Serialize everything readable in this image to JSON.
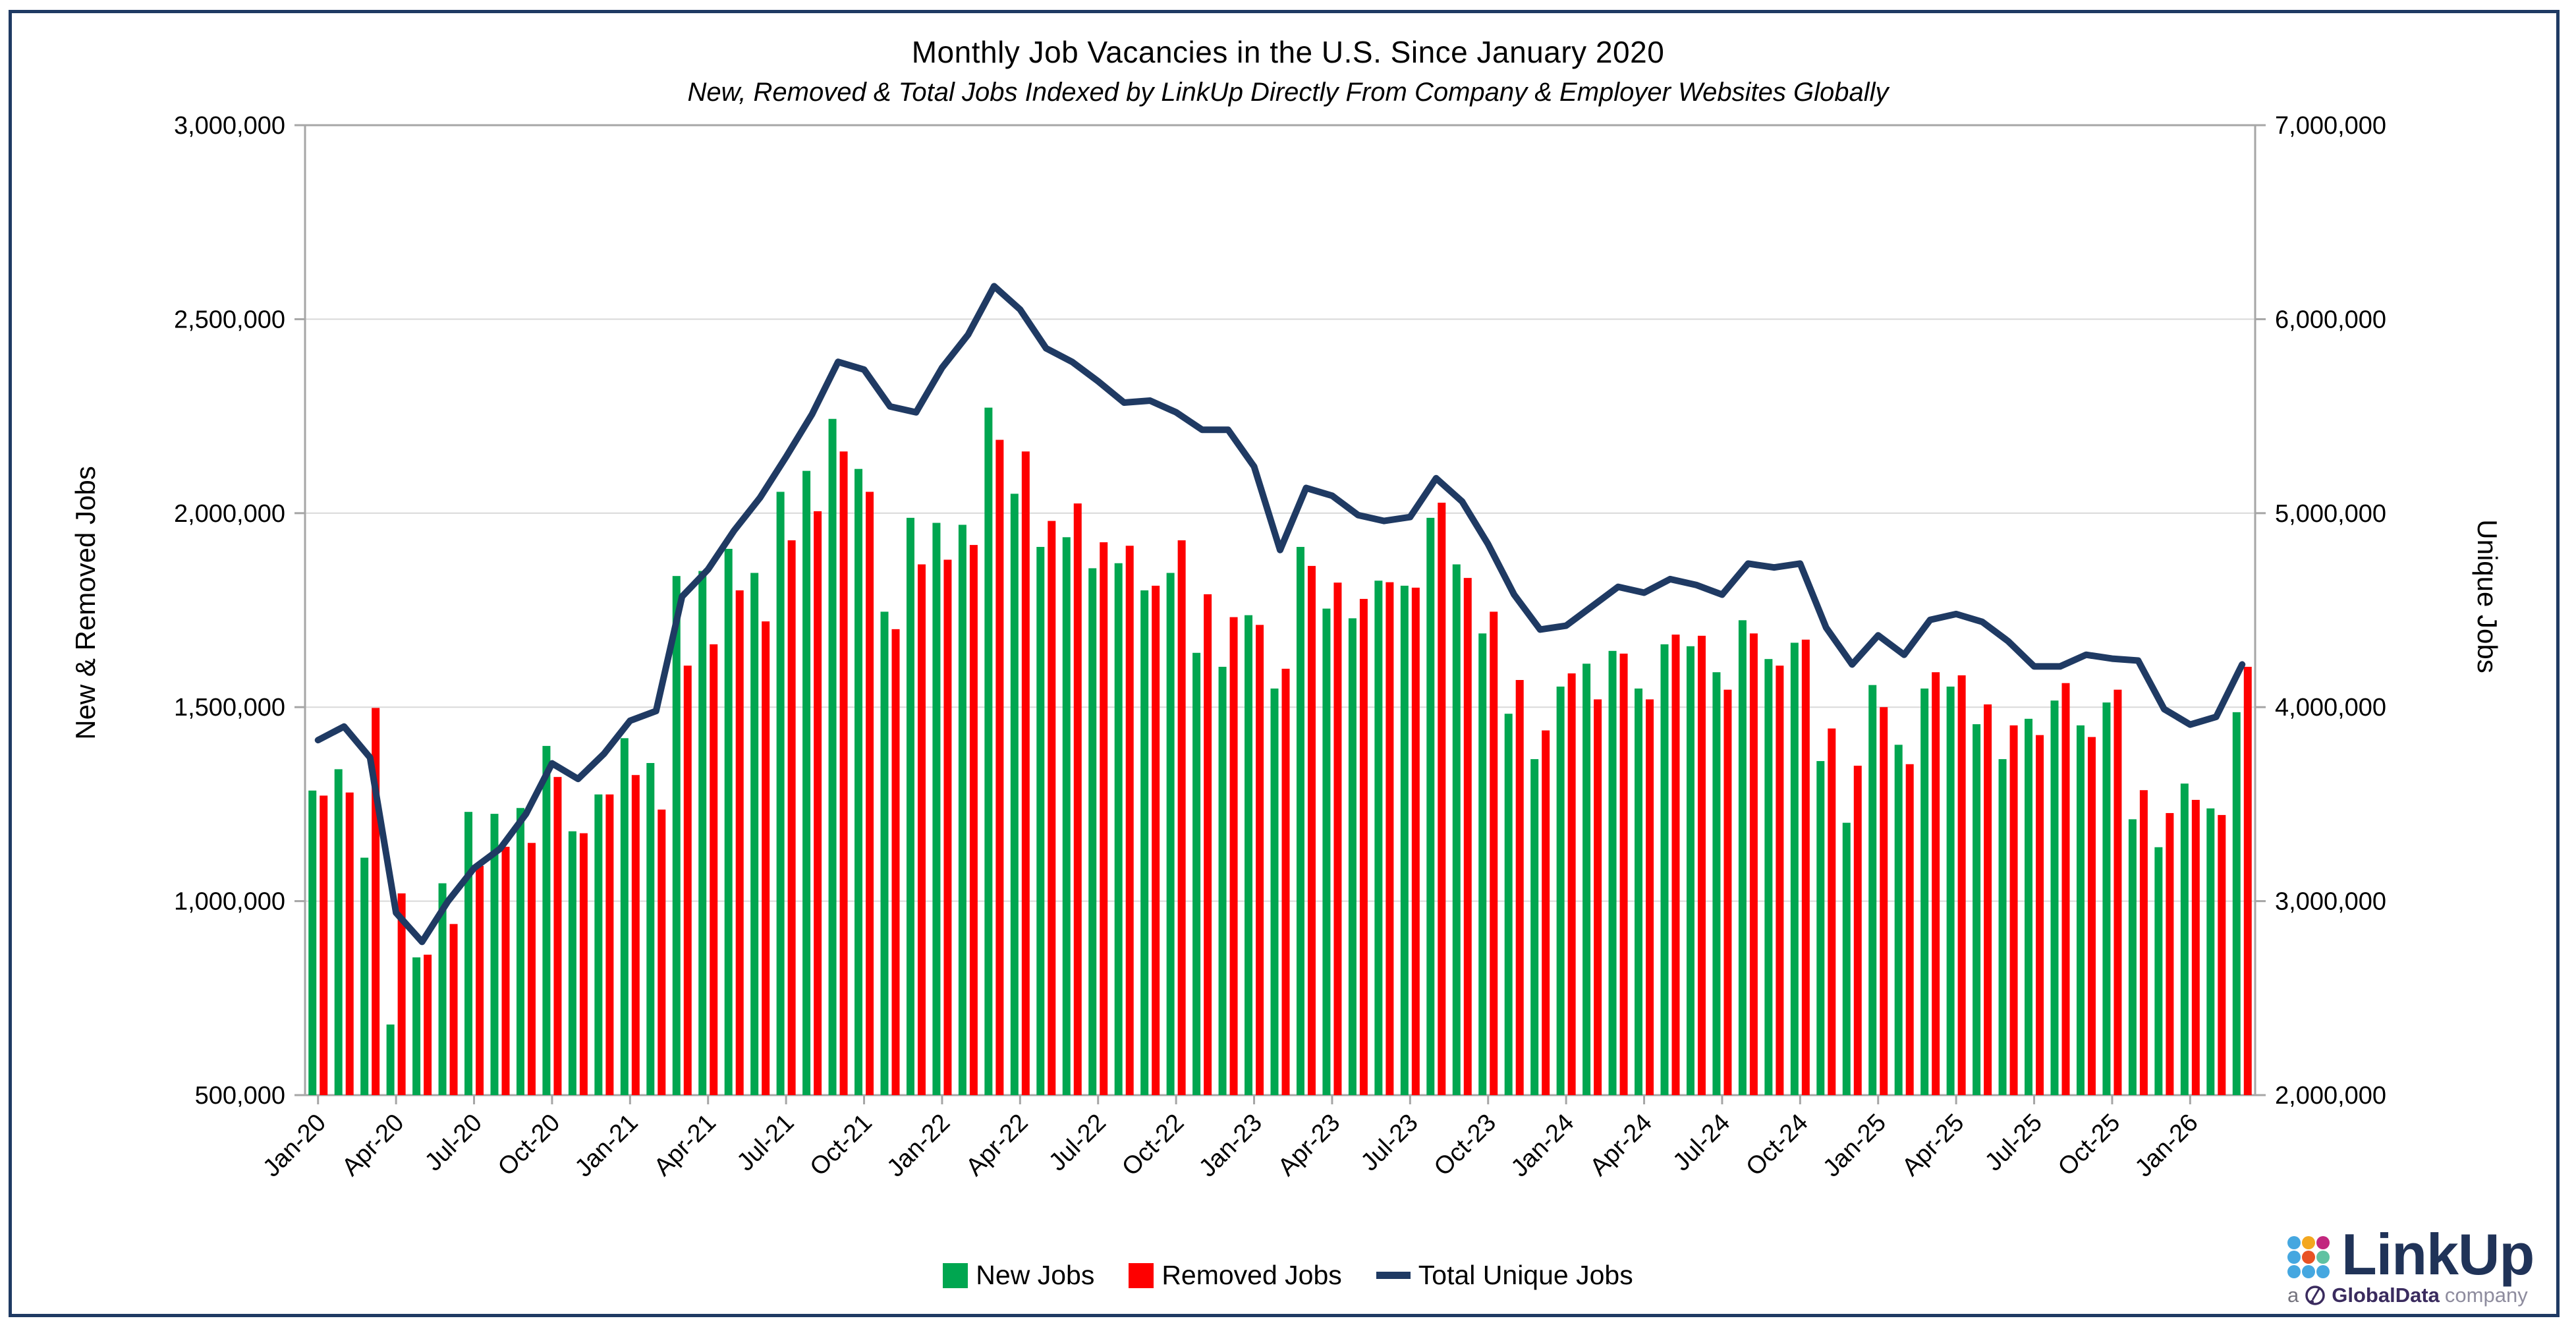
{
  "page": {
    "title": "Monthly Job Vacancies in the U.S. Since January 2020",
    "subtitle": "New, Removed & Total Jobs Indexed by LinkUp Directly From Company & Employer Websites Globally"
  },
  "chart_data": {
    "type": "bar+line",
    "title": "Monthly Job Vacancies in the U.S. Since January 2020",
    "subtitle": "New, Removed & Total Jobs Indexed by LinkUp Directly From Company & Employer Websites Globally",
    "grid": true,
    "legend_position": "bottom",
    "axis_line_color": "#a6a6a6",
    "grid_color": "#d9d9d9",
    "x_tick_every": 3,
    "categories": [
      "Jan-20",
      "Feb-20",
      "Mar-20",
      "Apr-20",
      "May-20",
      "Jun-20",
      "Jul-20",
      "Aug-20",
      "Sep-20",
      "Oct-20",
      "Nov-20",
      "Dec-20",
      "Jan-21",
      "Feb-21",
      "Mar-21",
      "Apr-21",
      "May-21",
      "Jun-21",
      "Jul-21",
      "Aug-21",
      "Sep-21",
      "Oct-21",
      "Nov-21",
      "Dec-21",
      "Jan-22",
      "Feb-22",
      "Mar-22",
      "Apr-22",
      "May-22",
      "Jun-22",
      "Jul-22",
      "Aug-22",
      "Sep-22",
      "Oct-22",
      "Nov-22",
      "Dec-22",
      "Jan-23",
      "Feb-23",
      "Mar-23",
      "Apr-23",
      "May-23",
      "Jun-23",
      "Jul-23",
      "Aug-23",
      "Sep-23",
      "Oct-23",
      "Nov-23",
      "Dec-23",
      "Jan-24",
      "Feb-24",
      "Mar-24",
      "Apr-24",
      "May-24",
      "Jun-24",
      "Jul-24",
      "Aug-24",
      "Sep-24",
      "Oct-24",
      "Nov-24",
      "Dec-24",
      "Jan-25",
      "Feb-25",
      "Mar-25",
      "Apr-25",
      "May-25",
      "Jun-25",
      "Jul-25",
      "Aug-25",
      "Sep-25",
      "Oct-25",
      "Nov-25",
      "Dec-25",
      "Jan-26",
      "Feb-26",
      "Mar-26"
    ],
    "left_axis": {
      "title": "New & Removed Jobs",
      "min": 500000,
      "max": 3000000,
      "step": 500000,
      "tick_labels": [
        "500,000",
        "1,000,000",
        "1,500,000",
        "2,000,000",
        "2,500,000",
        "3,000,000"
      ]
    },
    "right_axis": {
      "title": "Unique Jobs",
      "min": 2000000,
      "max": 7000000,
      "step": 1000000,
      "tick_labels": [
        "2,000,000",
        "3,000,000",
        "4,000,000",
        "5,000,000",
        "6,000,000",
        "7,000,000"
      ]
    },
    "series": [
      {
        "name": "New Jobs",
        "type": "bar",
        "axis": "left",
        "color": "#00a650",
        "values": [
          1285000,
          1340000,
          1112000,
          682000,
          855000,
          1046000,
          1230000,
          1225000,
          1240000,
          1400000,
          1180000,
          1275000,
          1420000,
          1356000,
          1838000,
          1851000,
          1908000,
          1846000,
          2055000,
          2109000,
          2243000,
          2114000,
          1746000,
          1988000,
          1975000,
          1970000,
          2272000,
          2050000,
          1913000,
          1938000,
          1858000,
          1871000,
          1801000,
          1846000,
          1640000,
          1604000,
          1737000,
          1548000,
          1913000,
          1754000,
          1729000,
          1826000,
          1813000,
          1988000,
          1868000,
          1690000,
          1483000,
          1366000,
          1553000,
          1612000,
          1645000,
          1548000,
          1662000,
          1657000,
          1590000,
          1724000,
          1624000,
          1666000,
          1361000,
          1202000,
          1557000,
          1403000,
          1548000,
          1553000,
          1456000,
          1366000,
          1470000,
          1517000,
          1453000,
          1512000,
          1211000,
          1139000,
          1303000,
          1239000,
          1487000
        ]
      },
      {
        "name": "Removed Jobs",
        "type": "bar",
        "axis": "left",
        "color": "#fe0000",
        "values": [
          1272000,
          1280000,
          1498000,
          1020000,
          862000,
          941000,
          1091000,
          1140000,
          1150000,
          1320000,
          1175000,
          1275000,
          1325000,
          1236000,
          1607000,
          1662000,
          1801000,
          1721000,
          1930000,
          2005000,
          2159000,
          2055000,
          1701000,
          1868000,
          1880000,
          1918000,
          2189000,
          2159000,
          1980000,
          2025000,
          1925000,
          1916000,
          1813000,
          1930000,
          1791000,
          1732000,
          1712000,
          1599000,
          1864000,
          1821000,
          1779000,
          1822000,
          1808000,
          2027000,
          1833000,
          1746000,
          1570000,
          1440000,
          1587000,
          1520000,
          1638000,
          1520000,
          1687000,
          1684000,
          1545000,
          1690000,
          1607000,
          1674000,
          1445000,
          1349000,
          1500000,
          1353000,
          1590000,
          1582000,
          1507000,
          1453000,
          1428000,
          1562000,
          1423000,
          1545000,
          1286000,
          1227000,
          1261000,
          1222000,
          1604000
        ]
      },
      {
        "name": "Total Unique Jobs",
        "type": "line",
        "axis": "right",
        "color": "#1f3a63",
        "values": [
          3830000,
          3900000,
          3740000,
          2940000,
          2790000,
          3000000,
          3170000,
          3270000,
          3450000,
          3710000,
          3630000,
          3760000,
          3930000,
          3980000,
          4570000,
          4710000,
          4910000,
          5080000,
          5290000,
          5510000,
          5780000,
          5740000,
          5550000,
          5520000,
          5750000,
          5920000,
          6170000,
          6050000,
          5850000,
          5780000,
          5680000,
          5570000,
          5580000,
          5520000,
          5430000,
          5430000,
          5240000,
          4810000,
          5130000,
          5090000,
          4990000,
          4960000,
          4980000,
          5180000,
          5060000,
          4840000,
          4580000,
          4400000,
          4420000,
          4520000,
          4620000,
          4590000,
          4660000,
          4630000,
          4580000,
          4740000,
          4720000,
          4740000,
          4410000,
          4220000,
          4370000,
          4270000,
          4450000,
          4480000,
          4440000,
          4340000,
          4210000,
          4210000,
          4270000,
          4250000,
          4240000,
          3990000,
          3910000,
          3950000,
          4220000
        ]
      }
    ]
  },
  "legend": {
    "items": [
      {
        "label": "New Jobs",
        "color": "#00a650",
        "marker": "square"
      },
      {
        "label": "Removed Jobs",
        "color": "#fe0000",
        "marker": "square"
      },
      {
        "label": "Total Unique Jobs",
        "color": "#1f3a63",
        "marker": "dash"
      }
    ]
  },
  "logo": {
    "brand": "LinkUp",
    "tagline_prefix": "a",
    "tagline_brand": "GlobalData",
    "tagline_suffix": "company",
    "brand_color": "#203358",
    "dot_colors": [
      "#45a7e0",
      "#f3a71f",
      "#c2277e",
      "#45a7e0",
      "#e85224",
      "#5fc2a2",
      "#45a7e0",
      "#45a7e0",
      "#45a7e0"
    ]
  }
}
